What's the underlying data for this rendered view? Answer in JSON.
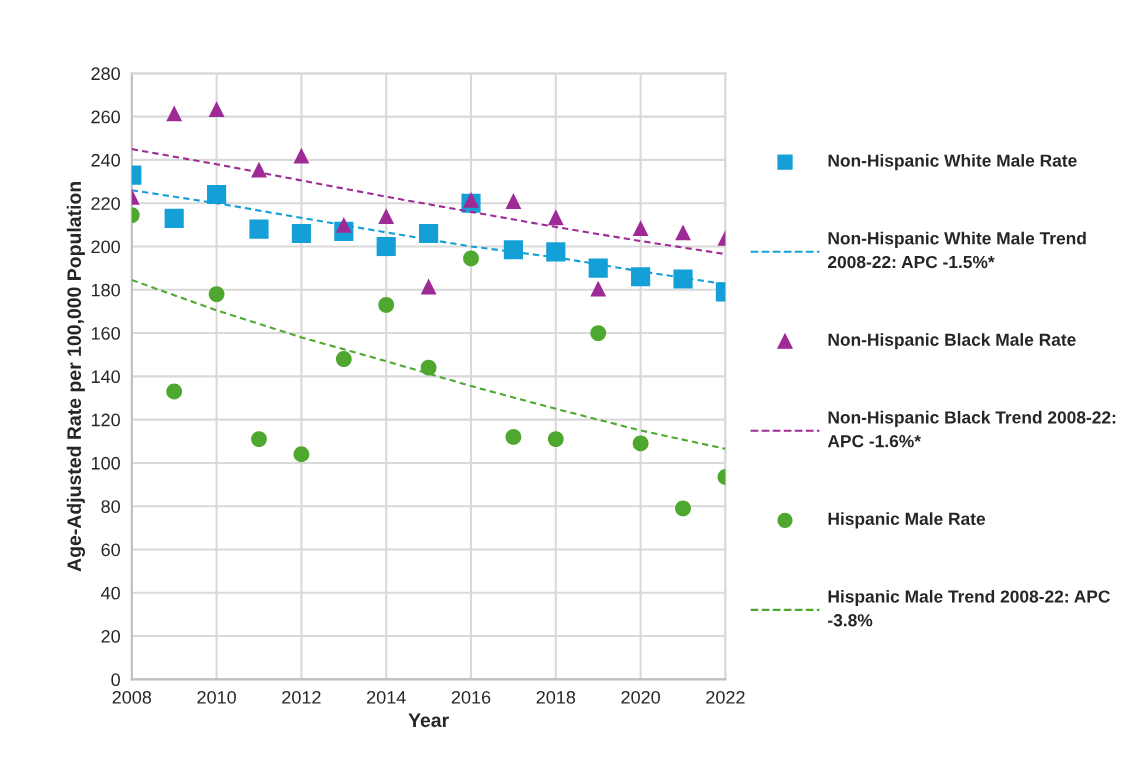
{
  "chart_data": {
    "type": "scatter",
    "xlabel": "Year",
    "ylabel": "Age-Adjusted Rate per 100,000 Population",
    "xlim": [
      2008,
      2022
    ],
    "xticks": [
      2008,
      2010,
      2012,
      2014,
      2016,
      2018,
      2020,
      2022
    ],
    "ylim": [
      0,
      280
    ],
    "yticks": [
      0,
      20,
      40,
      60,
      80,
      100,
      120,
      140,
      160,
      180,
      200,
      220,
      240,
      260,
      280
    ],
    "grid": true,
    "legend": "right",
    "series": [
      {
        "name": "Non-Hispanic White Male Rate",
        "marker": "square",
        "color": "#149fd6",
        "x": [
          2008,
          2009,
          2010,
          2011,
          2012,
          2013,
          2014,
          2015,
          2016,
          2017,
          2018,
          2019,
          2020,
          2021,
          2022
        ],
        "values": [
          233,
          213,
          224,
          208,
          206,
          207,
          200,
          206,
          220,
          198.5,
          197.5,
          190,
          186,
          185,
          179
        ]
      },
      {
        "name": "Non-Hispanic White Male Trend 2008-22: APC -1.5%*",
        "type": "line",
        "line_style": "dashed",
        "marker": "none",
        "color": "#149fd6",
        "x": [
          2008,
          2010,
          2014,
          2016,
          2018,
          2020,
          2022
        ],
        "values": [
          226,
          220,
          206.5,
          200,
          195,
          188.5,
          182.6
        ]
      },
      {
        "name": "Non-Hispanic Black Male Rate",
        "marker": "triangle",
        "color": "#9e2a96",
        "x": [
          2008,
          2009,
          2010,
          2011,
          2012,
          2013,
          2014,
          2015,
          2016,
          2017,
          2018,
          2019,
          2020,
          2021,
          2022
        ],
        "values": [
          223,
          261.5,
          263.5,
          235.5,
          242,
          210,
          214,
          181.5,
          221.5,
          221,
          213.5,
          180.5,
          208.5,
          206.5,
          204
        ]
      },
      {
        "name": "Non-Hispanic Black Trend 2008-22: APC -1.6%*",
        "type": "line",
        "line_style": "dashed",
        "marker": "none",
        "color": "#9e2a96",
        "x": [
          2008,
          2010,
          2012,
          2014,
          2016,
          2018,
          2020,
          2022
        ],
        "values": [
          245,
          238,
          230.5,
          223,
          216,
          209,
          202.5,
          196.5
        ]
      },
      {
        "name": "Hispanic Male Rate",
        "marker": "circle",
        "color": "#4ea72e",
        "x": [
          2008,
          2009,
          2010,
          2011,
          2012,
          2013,
          2014,
          2015,
          2016,
          2017,
          2018,
          2019,
          2020,
          2021,
          2022
        ],
        "values": [
          214.5,
          133,
          178,
          111,
          104,
          148,
          173,
          144,
          194.5,
          112,
          111,
          160,
          109,
          79,
          93.5
        ]
      },
      {
        "name": "Hispanic Male Trend 2008-22: APC -3.8%",
        "type": "line",
        "line_style": "dashed",
        "marker": "none",
        "color": "#4ea72e",
        "x": [
          2008,
          2010,
          2012,
          2014,
          2016,
          2018,
          2020,
          2022
        ],
        "values": [
          184.5,
          170.5,
          158,
          147,
          135.5,
          125,
          115,
          106.5
        ]
      }
    ]
  }
}
